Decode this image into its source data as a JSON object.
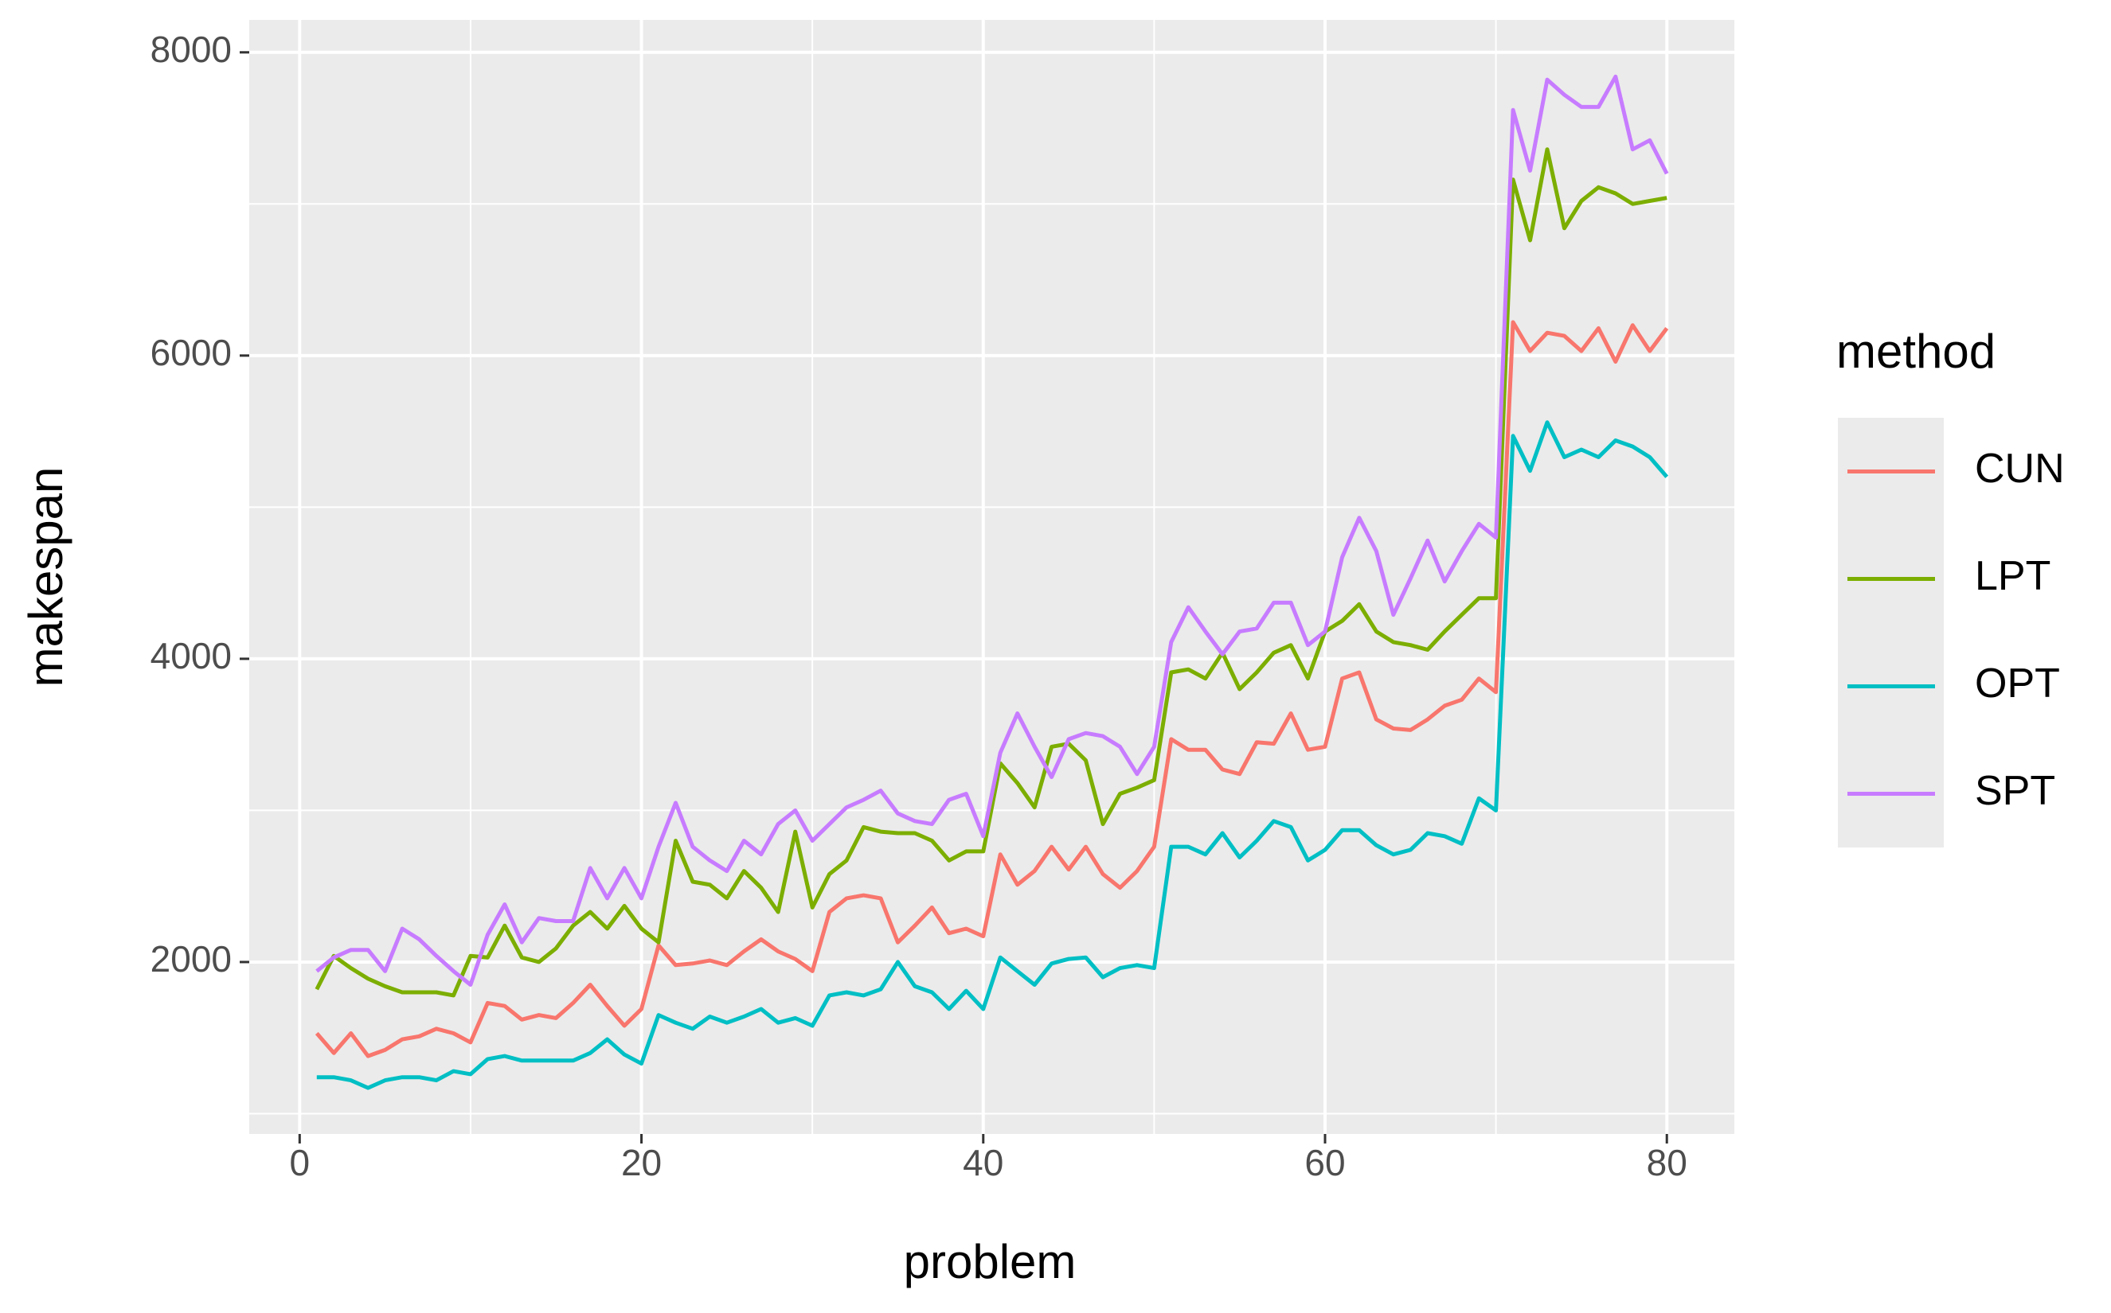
{
  "chart_data": {
    "type": "line",
    "x_label": "problem",
    "y_label": "makespan",
    "legend_title": "method",
    "x": [
      1,
      2,
      3,
      4,
      5,
      6,
      7,
      8,
      9,
      10,
      11,
      12,
      13,
      14,
      15,
      16,
      17,
      18,
      19,
      20,
      21,
      22,
      23,
      24,
      25,
      26,
      27,
      28,
      29,
      30,
      31,
      32,
      33,
      34,
      35,
      36,
      37,
      38,
      39,
      40,
      41,
      42,
      43,
      44,
      45,
      46,
      47,
      48,
      49,
      50,
      51,
      52,
      53,
      54,
      55,
      56,
      57,
      58,
      59,
      60,
      61,
      62,
      63,
      64,
      65,
      66,
      67,
      68,
      69,
      70,
      71,
      72,
      73,
      74,
      75,
      76,
      77,
      78,
      79,
      80
    ],
    "series": [
      {
        "name": "CUN",
        "color": "#F8766D",
        "values": [
          1530,
          1400,
          1530,
          1380,
          1420,
          1490,
          1510,
          1560,
          1530,
          1470,
          1730,
          1710,
          1620,
          1650,
          1630,
          1730,
          1850,
          1710,
          1580,
          1690,
          2110,
          1980,
          1990,
          2010,
          1980,
          2070,
          2150,
          2070,
          2020,
          1940,
          2330,
          2420,
          2440,
          2420,
          2130,
          2240,
          2360,
          2190,
          2220,
          2170,
          2710,
          2510,
          2600,
          2760,
          2610,
          2760,
          2580,
          2490,
          2600,
          2760,
          3470,
          3400,
          3400,
          3270,
          3240,
          3450,
          3440,
          3640,
          3400,
          3420,
          3870,
          3910,
          3600,
          3540,
          3530,
          3600,
          3690,
          3730,
          3870,
          3780,
          6220,
          6030,
          6150,
          6130,
          6030,
          6180,
          5960,
          6200,
          6030,
          6180
        ]
      },
      {
        "name": "LPT",
        "color": "#7CAE00",
        "values": [
          1820,
          2040,
          1960,
          1890,
          1840,
          1800,
          1800,
          1800,
          1780,
          2040,
          2030,
          2240,
          2030,
          2000,
          2090,
          2240,
          2330,
          2220,
          2370,
          2220,
          2130,
          2800,
          2530,
          2510,
          2420,
          2600,
          2490,
          2330,
          2860,
          2360,
          2580,
          2670,
          2890,
          2860,
          2850,
          2850,
          2800,
          2670,
          2730,
          2730,
          3310,
          3180,
          3020,
          3420,
          3440,
          3330,
          2910,
          3110,
          3150,
          3200,
          3910,
          3930,
          3870,
          4040,
          3800,
          3910,
          4040,
          4090,
          3870,
          4180,
          4250,
          4360,
          4180,
          4110,
          4090,
          4060,
          4180,
          4290,
          4400,
          4400,
          7160,
          6760,
          7360,
          6840,
          7020,
          7110,
          7070,
          7000,
          7020,
          7040
        ]
      },
      {
        "name": "OPT",
        "color": "#00BFC4",
        "values": [
          1240,
          1240,
          1220,
          1170,
          1220,
          1240,
          1240,
          1220,
          1280,
          1260,
          1360,
          1380,
          1350,
          1350,
          1350,
          1350,
          1400,
          1490,
          1390,
          1330,
          1650,
          1600,
          1560,
          1640,
          1600,
          1640,
          1690,
          1600,
          1630,
          1580,
          1780,
          1800,
          1780,
          1820,
          2000,
          1840,
          1800,
          1690,
          1810,
          1690,
          2030,
          1940,
          1850,
          1990,
          2020,
          2030,
          1900,
          1960,
          1980,
          1960,
          2760,
          2760,
          2710,
          2850,
          2690,
          2800,
          2930,
          2890,
          2670,
          2740,
          2870,
          2870,
          2770,
          2710,
          2740,
          2850,
          2830,
          2780,
          3080,
          3000,
          5470,
          5240,
          5560,
          5330,
          5380,
          5330,
          5440,
          5400,
          5330,
          5200
        ]
      },
      {
        "name": "SPT",
        "color": "#C77CFF",
        "values": [
          1940,
          2030,
          2080,
          2080,
          1940,
          2220,
          2150,
          2040,
          1940,
          1850,
          2180,
          2380,
          2130,
          2290,
          2270,
          2270,
          2620,
          2420,
          2620,
          2420,
          2760,
          3050,
          2760,
          2670,
          2600,
          2800,
          2710,
          2910,
          3000,
          2800,
          2910,
          3020,
          3070,
          3130,
          2980,
          2930,
          2910,
          3070,
          3110,
          2830,
          3380,
          3640,
          3420,
          3220,
          3470,
          3510,
          3490,
          3420,
          3240,
          3420,
          4110,
          4340,
          4180,
          4030,
          4180,
          4200,
          4370,
          4370,
          4090,
          4180,
          4670,
          4930,
          4710,
          4290,
          4530,
          4780,
          4510,
          4710,
          4890,
          4800,
          7620,
          7220,
          7820,
          7720,
          7640,
          7640,
          7840,
          7360,
          7420,
          7200
        ]
      }
    ],
    "xlim": [
      -2.95,
      83.95
    ],
    "xticks": [
      0,
      20,
      40,
      60,
      80
    ],
    "x_minor": [
      10,
      30,
      50,
      70
    ],
    "ylim": [
      866,
      8214
    ],
    "yticks": [
      2000,
      4000,
      6000,
      8000
    ],
    "y_minor": [
      1000,
      3000,
      5000,
      7000
    ],
    "grid": true,
    "legend": "right",
    "background": "#EBEBEB"
  }
}
